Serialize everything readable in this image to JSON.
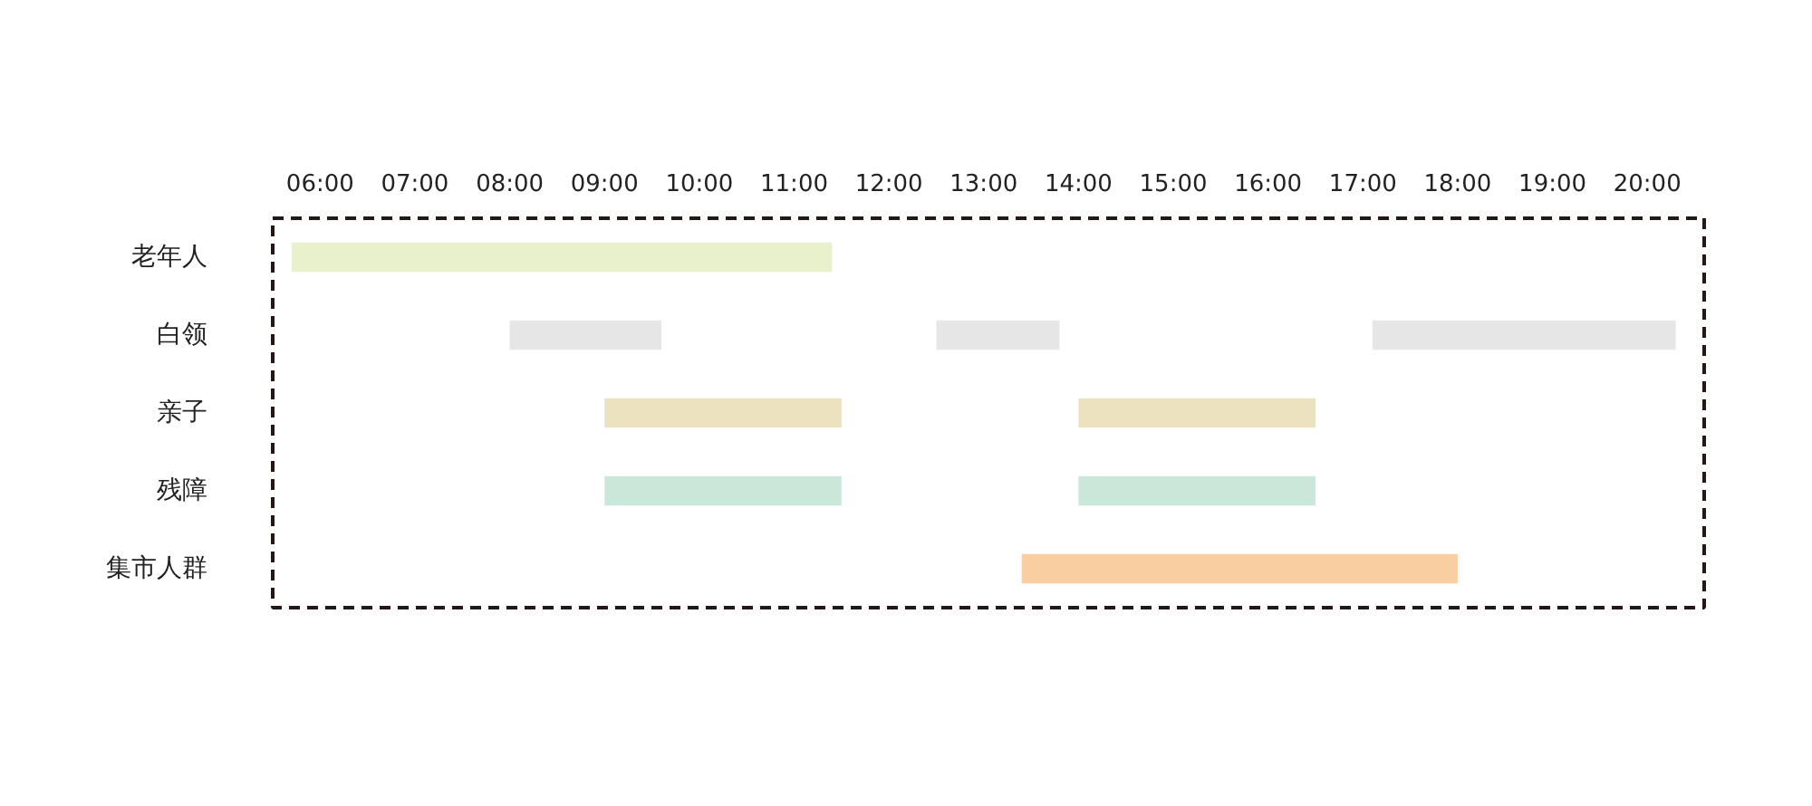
{
  "chart_data": {
    "type": "bar",
    "orientation": "horizontal",
    "categories": [
      "老年人",
      "白领",
      "亲子",
      "残障",
      "集市人群"
    ],
    "series": [
      {
        "colors": [
          "#e8f0cc",
          "#e6e6e6",
          "#ece2bf",
          "#c9e8da",
          "#f9cfa2"
        ],
        "base": [
          5.7,
          8.0,
          9.0,
          9.0,
          13.4
        ],
        "values": [
          5.7,
          1.6,
          2.5,
          2.5,
          4.6
        ]
      },
      {
        "colors": [
          "#e8f0cc",
          "#e6e6e6",
          "#ece2bf",
          "#c9e8da",
          "#f9cfa2"
        ],
        "base": [
          null,
          12.5,
          14.0,
          14.0,
          null
        ],
        "values": [
          null,
          1.3,
          2.5,
          2.5,
          null
        ]
      },
      {
        "colors": [
          "#e8f0cc",
          "#e6e6e6",
          "#ece2bf",
          "#c9e8da",
          "#f9cfa2"
        ],
        "base": [
          null,
          17.1,
          null,
          null,
          null
        ],
        "values": [
          null,
          3.2,
          null,
          null,
          null
        ]
      }
    ],
    "xlim": [
      5.5,
      20.6
    ],
    "xticks": [
      {
        "value": 6,
        "label": "06:00"
      },
      {
        "value": 7,
        "label": "07:00"
      },
      {
        "value": 8,
        "label": "08:00"
      },
      {
        "value": 9,
        "label": "09:00"
      },
      {
        "value": 10,
        "label": "10:00"
      },
      {
        "value": 11,
        "label": "11:00"
      },
      {
        "value": 12,
        "label": "12:00"
      },
      {
        "value": 13,
        "label": "13:00"
      },
      {
        "value": 14,
        "label": "14:00"
      },
      {
        "value": 15,
        "label": "15:00"
      },
      {
        "value": 16,
        "label": "16:00"
      },
      {
        "value": 17,
        "label": "17:00"
      },
      {
        "value": 18,
        "label": "18:00"
      },
      {
        "value": 19,
        "label": "19:00"
      },
      {
        "value": 20,
        "label": "20:00"
      }
    ],
    "grid": false
  }
}
